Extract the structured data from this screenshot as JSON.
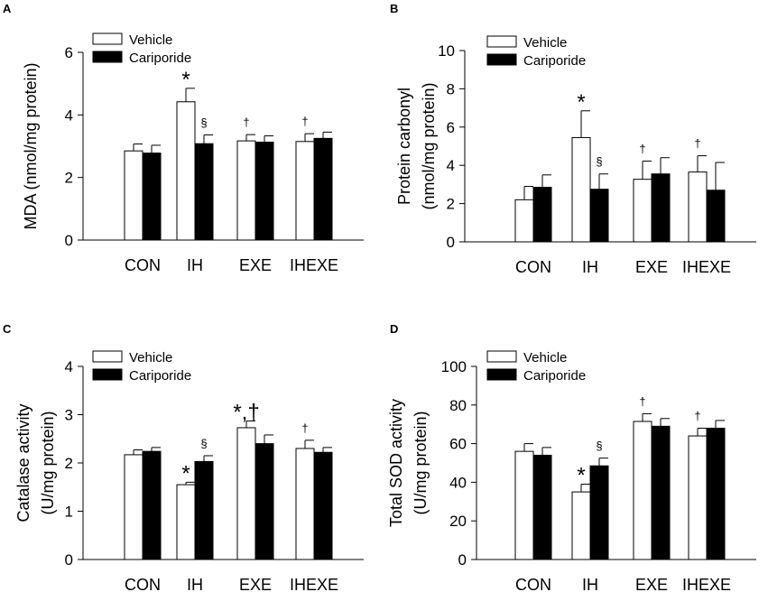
{
  "colors": {
    "vehicle": "#ffffff",
    "cariporide": "#000000",
    "axis": "#000000"
  },
  "legend": {
    "vehicle": "Vehicle",
    "cariporide": "Cariporide"
  },
  "chart_data": [
    {
      "panel": "A",
      "type": "bar",
      "categories": [
        "CON",
        "IH",
        "EXE",
        "IHEXE"
      ],
      "ylabel": [
        "MDA (nmol/mg protein)"
      ],
      "ylim": [
        0,
        6
      ],
      "yticks": [
        0,
        2,
        4,
        6
      ],
      "series": [
        {
          "name": "Vehicle",
          "values": [
            2.85,
            4.42,
            3.17,
            3.15
          ],
          "errors": [
            0.22,
            0.43,
            0.2,
            0.25
          ]
        },
        {
          "name": "Cariporide",
          "values": [
            2.78,
            3.08,
            3.13,
            3.25
          ],
          "errors": [
            0.25,
            0.28,
            0.2,
            0.2
          ]
        }
      ],
      "annotations": [
        {
          "cat": 1,
          "series": 0,
          "text": "*"
        },
        {
          "cat": 1,
          "series": 1,
          "text": "§"
        },
        {
          "cat": 2,
          "series": 0,
          "text": "†"
        },
        {
          "cat": 3,
          "series": 0,
          "text": "†"
        }
      ]
    },
    {
      "panel": "B",
      "type": "bar",
      "categories": [
        "CON",
        "IH",
        "EXE",
        "IHEXE"
      ],
      "ylabel": [
        "Protein carbonyl",
        "(nmol/mg protein)"
      ],
      "ylim": [
        0,
        10
      ],
      "yticks": [
        0,
        2,
        4,
        6,
        8,
        10
      ],
      "series": [
        {
          "name": "Vehicle",
          "values": [
            2.2,
            5.45,
            3.27,
            3.65
          ],
          "errors": [
            0.7,
            1.4,
            0.95,
            0.85
          ]
        },
        {
          "name": "Cariporide",
          "values": [
            2.85,
            2.75,
            3.55,
            2.7
          ],
          "errors": [
            0.65,
            0.8,
            0.85,
            1.45
          ]
        }
      ],
      "annotations": [
        {
          "cat": 1,
          "series": 0,
          "text": "*"
        },
        {
          "cat": 1,
          "series": 1,
          "text": "§"
        },
        {
          "cat": 2,
          "series": 0,
          "text": "†"
        },
        {
          "cat": 3,
          "series": 0,
          "text": "†"
        }
      ]
    },
    {
      "panel": "C",
      "type": "bar",
      "categories": [
        "CON",
        "IH",
        "EXE",
        "IHEXE"
      ],
      "ylabel": [
        "Catalase activity",
        "(U/mg protein)"
      ],
      "ylim": [
        0,
        4
      ],
      "yticks": [
        0,
        1,
        2,
        3,
        4
      ],
      "series": [
        {
          "name": "Vehicle",
          "values": [
            2.17,
            1.55,
            2.73,
            2.3
          ],
          "errors": [
            0.1,
            0.05,
            0.14,
            0.17
          ]
        },
        {
          "name": "Cariporide",
          "values": [
            2.24,
            2.03,
            2.4,
            2.22
          ],
          "errors": [
            0.08,
            0.12,
            0.18,
            0.1
          ]
        }
      ],
      "annotations": [
        {
          "cat": 1,
          "series": 0,
          "text": "*"
        },
        {
          "cat": 1,
          "series": 1,
          "text": "§"
        },
        {
          "cat": 2,
          "series": 0,
          "text": "*,†"
        },
        {
          "cat": 3,
          "series": 0,
          "text": "†"
        }
      ]
    },
    {
      "panel": "D",
      "type": "bar",
      "categories": [
        "CON",
        "IH",
        "EXE",
        "IHEXE"
      ],
      "ylabel": [
        "Total SOD activity",
        "(U/mg protein)"
      ],
      "ylim": [
        0,
        100
      ],
      "yticks": [
        0,
        20,
        40,
        60,
        80,
        100
      ],
      "series": [
        {
          "name": "Vehicle",
          "values": [
            56,
            35,
            71.5,
            64
          ],
          "errors": [
            4,
            4,
            4,
            4
          ]
        },
        {
          "name": "Cariporide",
          "values": [
            54,
            48.5,
            69,
            68
          ],
          "errors": [
            4,
            4,
            4,
            4
          ]
        }
      ],
      "annotations": [
        {
          "cat": 1,
          "series": 0,
          "text": "*"
        },
        {
          "cat": 1,
          "series": 1,
          "text": "§"
        },
        {
          "cat": 2,
          "series": 0,
          "text": "†"
        },
        {
          "cat": 3,
          "series": 0,
          "text": "†"
        }
      ]
    }
  ]
}
